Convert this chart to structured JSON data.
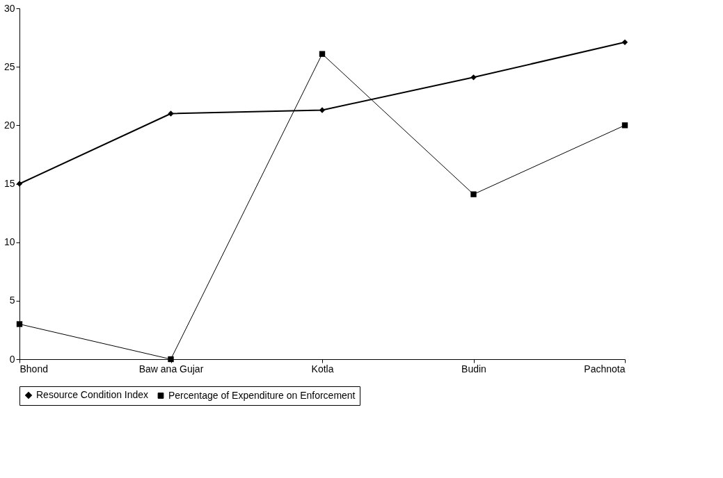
{
  "chart_data": {
    "type": "line",
    "categories": [
      "Bhond",
      "Baw ana Gujar",
      "Kotla",
      "Budin",
      "Pachnota"
    ],
    "series": [
      {
        "name": "Resource Condition Index",
        "color": "#000000",
        "marker": "diamond",
        "values": [
          15,
          21,
          21.3,
          24.1,
          27.1
        ]
      },
      {
        "name": "Percentage of Expenditure on Enforcement",
        "color": "#000000",
        "marker": "square",
        "values": [
          3,
          0,
          26.1,
          14.1,
          20
        ]
      }
    ],
    "ylim": [
      0,
      30
    ],
    "yticks": [
      0,
      5,
      10,
      15,
      20,
      25,
      30
    ],
    "grid": false,
    "legend": "bottom",
    "line_style": "solid"
  }
}
